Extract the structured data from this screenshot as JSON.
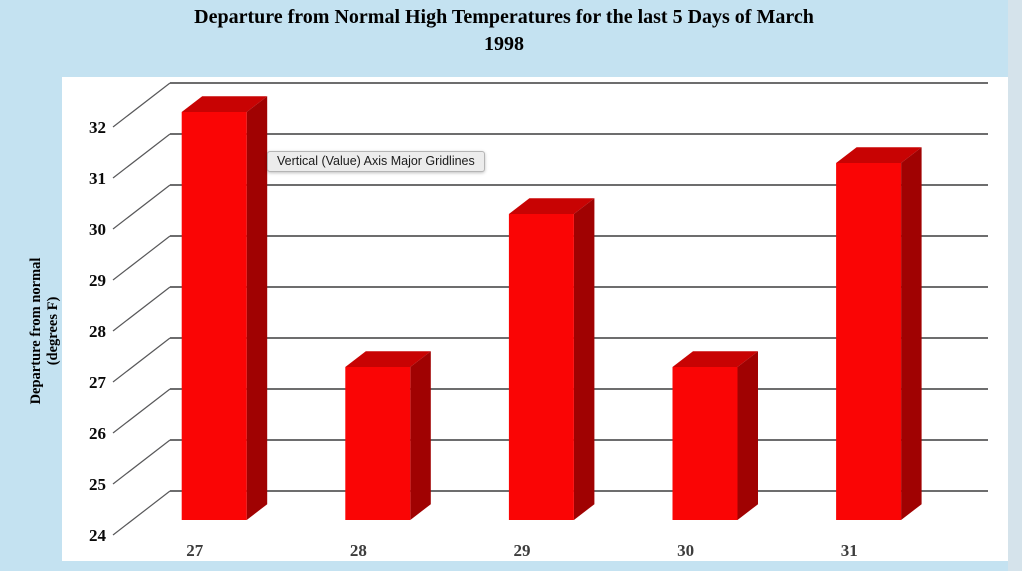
{
  "window": {
    "background_color": "#c4e2f1",
    "edge_strip_color": "#d5e3eb"
  },
  "title": {
    "line1": "Departure from Normal High Temperatures for the last 5 Days of March",
    "line2": "1998"
  },
  "tooltip": {
    "text": "Vertical (Value) Axis Major Gridlines"
  },
  "chart_data": {
    "type": "bar",
    "projection": "3d-oblique",
    "title": "Departure from Normal High Temperatures for the last 5 Days of March 1998",
    "categories": [
      "27",
      "28",
      "29",
      "30",
      "31"
    ],
    "values": [
      32,
      27,
      30,
      27,
      31
    ],
    "xlabel": "",
    "ylabel": "Departure from normal (degrees  F)",
    "ylabel_lines": [
      "Departure from normal",
      "(degrees  F)"
    ],
    "ylim": [
      24,
      32
    ],
    "yticks": [
      24,
      25,
      26,
      27,
      28,
      29,
      30,
      31,
      32
    ],
    "grid": true,
    "legend": false,
    "colors": {
      "bar_front": "#fa0505",
      "bar_top": "#c80303",
      "bar_side": "#a00202",
      "gridline": "#58585a",
      "plot_background": "#ffffff",
      "value_axis_label": "#0a0a0a",
      "category_axis_label": "#3d3d3d",
      "axis_title": "#000000"
    }
  }
}
